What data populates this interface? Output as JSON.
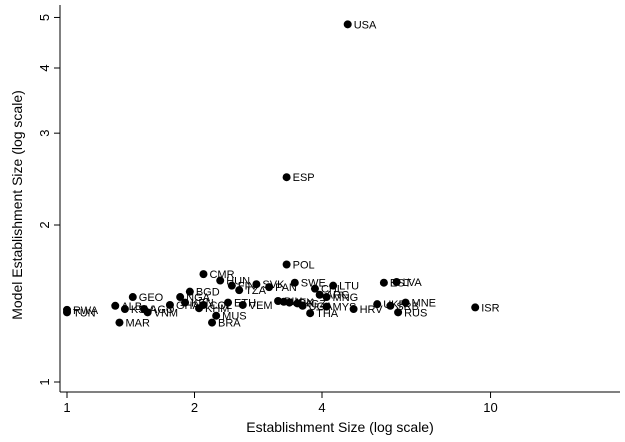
{
  "chart_data": {
    "type": "scatter",
    "xlabel": "Establishment Size (log scale)",
    "ylabel": "Model Establishment Size (log scale)",
    "x_scale": "log",
    "y_scale": "log",
    "xlim": [
      0.95,
      17
    ],
    "ylim": [
      0.95,
      5.5
    ],
    "x_ticks": [
      {
        "value": 1,
        "label": "1"
      },
      {
        "value": 2,
        "label": "2"
      },
      {
        "value": 4,
        "label": "4"
      },
      {
        "value": 10,
        "label": "10"
      }
    ],
    "y_ticks": [
      {
        "value": 1,
        "label": "1"
      },
      {
        "value": 2,
        "label": "2"
      },
      {
        "value": 3,
        "label": "3"
      },
      {
        "value": 4,
        "label": "4"
      },
      {
        "value": 5,
        "label": "5"
      }
    ],
    "grid": false,
    "marker_color": "#000000",
    "points": [
      {
        "label": "USA",
        "x": 4.6,
        "y": 4.85
      },
      {
        "label": "ESP",
        "x": 3.3,
        "y": 2.47
      },
      {
        "label": "POL",
        "x": 3.3,
        "y": 1.68
      },
      {
        "label": "CMR",
        "x": 2.1,
        "y": 1.61
      },
      {
        "label": "HUN",
        "x": 2.3,
        "y": 1.565
      },
      {
        "label": "SVK",
        "x": 2.8,
        "y": 1.54
      },
      {
        "label": "SWE",
        "x": 3.45,
        "y": 1.55
      },
      {
        "label": "LTU",
        "x": 4.25,
        "y": 1.53
      },
      {
        "label": "LVA",
        "x": 6.0,
        "y": 1.555
      },
      {
        "label": "EST",
        "x": 5.6,
        "y": 1.55
      },
      {
        "label": "PAN",
        "x": 3.0,
        "y": 1.52
      },
      {
        "label": "FIN",
        "x": 2.45,
        "y": 1.53
      },
      {
        "label": "BGD",
        "x": 1.95,
        "y": 1.49
      },
      {
        "label": "TZA",
        "x": 2.55,
        "y": 1.5
      },
      {
        "label": "GEO",
        "x": 1.43,
        "y": 1.455
      },
      {
        "label": "NGA",
        "x": 1.85,
        "y": 1.455
      },
      {
        "label": "CHL",
        "x": 3.85,
        "y": 1.51
      },
      {
        "label": "MNG",
        "x": 4.1,
        "y": 1.455
      },
      {
        "label": "ARG",
        "x": 3.95,
        "y": 1.47
      },
      {
        "label": "KEN",
        "x": 1.9,
        "y": 1.42
      },
      {
        "label": "ETH",
        "x": 2.4,
        "y": 1.42
      },
      {
        "label": "MEX",
        "x": 3.25,
        "y": 1.425
      },
      {
        "label": "BIH",
        "x": 3.15,
        "y": 1.43
      },
      {
        "label": "IDN",
        "x": 3.35,
        "y": 1.42
      },
      {
        "label": "KGZ",
        "x": 3.5,
        "y": 1.415
      },
      {
        "label": "ALB",
        "x": 1.3,
        "y": 1.4
      },
      {
        "label": "MNE",
        "x": 6.3,
        "y": 1.42
      },
      {
        "label": "UKR",
        "x": 5.4,
        "y": 1.41
      },
      {
        "label": "SRB",
        "x": 5.8,
        "y": 1.4
      },
      {
        "label": "GHA",
        "x": 1.75,
        "y": 1.405
      },
      {
        "label": "COL",
        "x": 2.1,
        "y": 1.405
      },
      {
        "label": "VEM",
        "x": 2.6,
        "y": 1.405
      },
      {
        "label": "UGA",
        "x": 3.6,
        "y": 1.4
      },
      {
        "label": "MYS",
        "x": 4.1,
        "y": 1.395
      },
      {
        "label": "KHM",
        "x": 2.05,
        "y": 1.385
      },
      {
        "label": "ISR",
        "x": 9.2,
        "y": 1.39
      },
      {
        "label": "HRV",
        "x": 4.75,
        "y": 1.38
      },
      {
        "label": "RUS",
        "x": 6.05,
        "y": 1.36
      },
      {
        "label": "THA",
        "x": 3.75,
        "y": 1.355
      },
      {
        "label": "RWA",
        "x": 1.0,
        "y": 1.375
      },
      {
        "label": "TUN",
        "x": 1.0,
        "y": 1.36
      },
      {
        "label": "KSV",
        "x": 1.37,
        "y": 1.38
      },
      {
        "label": "AGO",
        "x": 1.52,
        "y": 1.38
      },
      {
        "label": "VNM",
        "x": 1.55,
        "y": 1.36
      },
      {
        "label": "MUS",
        "x": 2.25,
        "y": 1.34
      },
      {
        "label": "MAR",
        "x": 1.33,
        "y": 1.3
      },
      {
        "label": "BRA",
        "x": 2.2,
        "y": 1.3
      }
    ]
  }
}
